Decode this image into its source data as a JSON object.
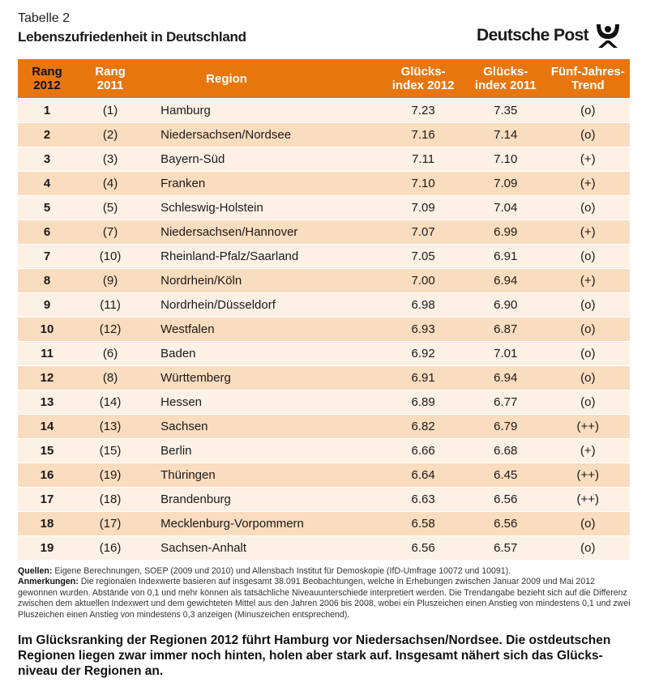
{
  "header": {
    "subtitle": "Tabelle 2",
    "title": "Lebenszufriedenheit in Deutschland",
    "logo_text": "Deutsche Post"
  },
  "table": {
    "columns": [
      "Rang\n2012",
      "Rang\n2011",
      "Region",
      "Glücks-\nindex 2012",
      "Glücks-\nindex 2011",
      "Fünf-Jahres-\nTrend"
    ],
    "rows": [
      [
        "1",
        "(1)",
        "Hamburg",
        "7.23",
        "7.35",
        "(o)"
      ],
      [
        "2",
        "(2)",
        "Niedersachsen/Nordsee",
        "7.16",
        "7.14",
        "(o)"
      ],
      [
        "3",
        "(3)",
        "Bayern-Süd",
        "7.11",
        "7.10",
        "(+)"
      ],
      [
        "4",
        "(4)",
        "Franken",
        "7.10",
        "7.09",
        "(+)"
      ],
      [
        "5",
        "(5)",
        "Schleswig-Holstein",
        "7.09",
        "7.04",
        "(o)"
      ],
      [
        "6",
        "(7)",
        "Niedersachsen/Hannover",
        "7.07",
        "6.99",
        "(+)"
      ],
      [
        "7",
        "(10)",
        "Rheinland-Pfalz/Saarland",
        "7.05",
        "6.91",
        "(o)"
      ],
      [
        "8",
        "(9)",
        "Nordrhein/Köln",
        "7.00",
        "6.94",
        "(+)"
      ],
      [
        "9",
        "(11)",
        "Nordrhein/Düsseldorf",
        "6.98",
        "6.90",
        "(o)"
      ],
      [
        "10",
        "(12)",
        "Westfalen",
        "6.93",
        "6.87",
        "(o)"
      ],
      [
        "11",
        "(6)",
        "Baden",
        "6.92",
        "7.01",
        "(o)"
      ],
      [
        "12",
        "(8)",
        "Württemberg",
        "6.91",
        "6.94",
        "(o)"
      ],
      [
        "13",
        "(14)",
        "Hessen",
        "6.89",
        "6.77",
        "(o)"
      ],
      [
        "14",
        "(13)",
        "Sachsen",
        "6.82",
        "6.79",
        "(++)"
      ],
      [
        "15",
        "(15)",
        "Berlin",
        "6.66",
        "6.68",
        "(+)"
      ],
      [
        "16",
        "(19)",
        "Thüringen",
        "6.64",
        "6.45",
        "(++)"
      ],
      [
        "17",
        "(18)",
        "Brandenburg",
        "6.63",
        "6.56",
        "(++)"
      ],
      [
        "18",
        "(17)",
        "Mecklenburg-Vorpommern",
        "6.58",
        "6.56",
        "(o)"
      ],
      [
        "19",
        "(16)",
        "Sachsen-Anhalt",
        "6.56",
        "6.57",
        "(o)"
      ]
    ]
  },
  "notes": {
    "sources_label": "Quellen:",
    "sources": " Eigene Berechnungen, SOEP (2009 und 2010) und Allensbach Institut für Demoskopie (IfD-Umfrage 10072 und 10091).",
    "remarks_label": "Anmerkungen:",
    "remarks": " Die regionalen Indexwerte basieren auf insgesamt 38.091 Beobachtungen, welche in Erhebungen zwischen Januar 2009 und Mai 2012 gewonnen wurden. Abstände von 0,1 und mehr können als tatsächliche Niveauunterschiede interpretiert werden. Die Trendangabe bezieht sich auf die Differenz zwischen dem aktuellen Indexwert und dem gewichteten Mittel aus den Jahren 2006 bis 2008, wobei ein Pluszeichen einen Anstieg von mindestens 0,1 und zwei Pluszeichen einen Anstieg von mindestens 0,3 anzeigen (Minuszeichen entsprechend)."
  },
  "summary": "Im Glücksranking der Regionen 2012 führt Hamburg vor Niedersachsen/Nordsee. Die ostdeutschen Regionen liegen zwar immer noch hinten, holen aber stark auf. Insgesamt nähert sich das Glücks-niveau der Regionen an.",
  "colors": {
    "header": "#e8760f",
    "row_light": "#fdf0e4",
    "row_dark": "#fadcbf"
  }
}
